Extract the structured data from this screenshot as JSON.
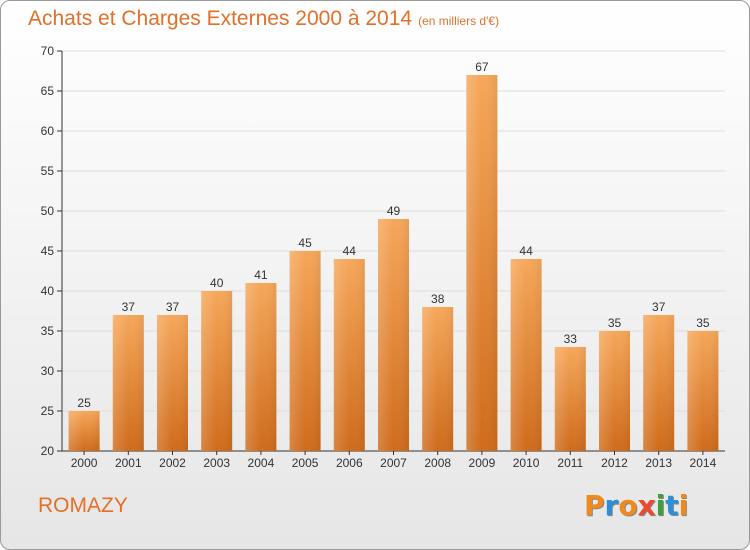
{
  "header": {
    "title": "Achats et Charges Externes 2000 à 2014",
    "unit": "(en milliers d'€)"
  },
  "footer": {
    "commune": "ROMAZY",
    "logo_text": "Proxiti",
    "logo_colors": [
      "#f08a1c",
      "#2d8fd8",
      "#f08a1c",
      "#e84b2f",
      "#3aa23a",
      "#2d8fd8",
      "#f08a1c"
    ]
  },
  "colors": {
    "accent": "#e2702a",
    "bar_top": "#f6a75a",
    "bar_bottom": "#cf6b1b",
    "grid": "#dddddd"
  },
  "chart_data": {
    "type": "bar",
    "categories": [
      "2000",
      "2001",
      "2002",
      "2003",
      "2004",
      "2005",
      "2006",
      "2007",
      "2008",
      "2009",
      "2010",
      "2011",
      "2012",
      "2013",
      "2014"
    ],
    "values": [
      25,
      37,
      37,
      40,
      41,
      45,
      44,
      49,
      38,
      67,
      44,
      33,
      35,
      37,
      35
    ],
    "title": "Achats et Charges Externes 2000 à 2014",
    "ylim": [
      20,
      70
    ],
    "yticks": [
      20,
      25,
      30,
      35,
      40,
      45,
      50,
      55,
      60,
      65,
      70
    ],
    "grid": true,
    "data_labels": true
  }
}
